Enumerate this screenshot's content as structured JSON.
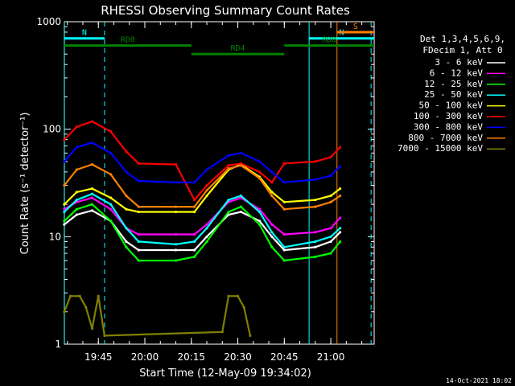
{
  "chart_data": {
    "type": "line",
    "title": "RHESSI Observing Summary Count Rates",
    "xlabel": "Start Time (12-May-09 19:34:02)",
    "ylabel": "Count Rate (s⁻¹ detector⁻¹)",
    "y_scale": "log",
    "ylim": [
      1,
      1000
    ],
    "xlim": [
      "19:34:02",
      "21:14:00"
    ],
    "x_tick_labels": [
      "19:45",
      "20:00",
      "20:15",
      "20:30",
      "20:45",
      "21:00"
    ],
    "y_tick_labels": [
      "1",
      "10",
      "100",
      "1000"
    ],
    "legend_header": [
      "Det 1,3,4,5,6,9,",
      "FDecim 1, Att 0"
    ],
    "legend_position": "right",
    "timestamp": "14-Oct-2021 18:02",
    "series": [
      {
        "name": "3 - 6 keV",
        "color": "#ffffff",
        "points": [
          [
            "19:34",
            13
          ],
          [
            "19:38",
            16
          ],
          [
            "19:43",
            17.5
          ],
          [
            "19:49",
            14
          ],
          [
            "19:54",
            9
          ],
          [
            "19:58",
            7.5
          ],
          [
            "20:10",
            7.5
          ],
          [
            "20:16",
            7.5
          ],
          [
            "20:20",
            10
          ],
          [
            "20:27",
            16
          ],
          [
            "20:31",
            17
          ],
          [
            "20:37",
            14
          ],
          [
            "20:41",
            10
          ],
          [
            "20:45",
            7.5
          ],
          [
            "20:55",
            8
          ],
          [
            "21:00",
            9
          ],
          [
            "21:03",
            11
          ]
        ]
      },
      {
        "name": "6 - 12 keV",
        "color": "#ff00ff",
        "points": [
          [
            "19:34",
            18
          ],
          [
            "19:38",
            21
          ],
          [
            "19:43",
            23
          ],
          [
            "19:49",
            18
          ],
          [
            "19:54",
            12
          ],
          [
            "19:58",
            10.5
          ],
          [
            "20:10",
            10.5
          ],
          [
            "20:16",
            10.5
          ],
          [
            "20:20",
            13
          ],
          [
            "20:27",
            21
          ],
          [
            "20:31",
            23
          ],
          [
            "20:37",
            18
          ],
          [
            "20:41",
            13
          ],
          [
            "20:45",
            10.5
          ],
          [
            "20:55",
            11
          ],
          [
            "21:00",
            12
          ],
          [
            "21:03",
            15
          ]
        ]
      },
      {
        "name": "12 - 25 keV",
        "color": "#00ff00",
        "points": [
          [
            "19:34",
            14
          ],
          [
            "19:38",
            18
          ],
          [
            "19:43",
            20
          ],
          [
            "19:49",
            14
          ],
          [
            "19:54",
            8
          ],
          [
            "19:58",
            6
          ],
          [
            "20:10",
            6
          ],
          [
            "20:16",
            6.5
          ],
          [
            "20:20",
            9
          ],
          [
            "20:27",
            17
          ],
          [
            "20:31",
            19
          ],
          [
            "20:37",
            13
          ],
          [
            "20:41",
            8
          ],
          [
            "20:45",
            6
          ],
          [
            "20:55",
            6.5
          ],
          [
            "21:00",
            7
          ],
          [
            "21:03",
            9
          ]
        ]
      },
      {
        "name": "25 - 50 keV",
        "color": "#00ffff",
        "points": [
          [
            "19:34",
            17
          ],
          [
            "19:38",
            22
          ],
          [
            "19:43",
            25
          ],
          [
            "19:49",
            20
          ],
          [
            "19:54",
            12
          ],
          [
            "19:58",
            9
          ],
          [
            "20:10",
            8.5
          ],
          [
            "20:16",
            9
          ],
          [
            "20:20",
            12
          ],
          [
            "20:27",
            22
          ],
          [
            "20:31",
            24
          ],
          [
            "20:37",
            17
          ],
          [
            "20:41",
            11
          ],
          [
            "20:45",
            8
          ],
          [
            "20:55",
            9
          ],
          [
            "21:00",
            10
          ],
          [
            "21:03",
            12
          ]
        ]
      },
      {
        "name": "50 - 100 keV",
        "color": "#ffff00",
        "points": [
          [
            "19:34",
            20
          ],
          [
            "19:38",
            26
          ],
          [
            "19:43",
            28
          ],
          [
            "19:49",
            23
          ],
          [
            "19:54",
            18
          ],
          [
            "19:58",
            17
          ],
          [
            "20:10",
            17
          ],
          [
            "20:16",
            17
          ],
          [
            "20:20",
            24
          ],
          [
            "20:27",
            42
          ],
          [
            "20:31",
            47
          ],
          [
            "20:37",
            36
          ],
          [
            "20:41",
            26
          ],
          [
            "20:45",
            21
          ],
          [
            "20:55",
            22
          ],
          [
            "21:00",
            24
          ],
          [
            "21:03",
            28
          ]
        ]
      },
      {
        "name": "100 - 300 keV",
        "color": "#ff0000",
        "points": [
          [
            "19:34",
            80
          ],
          [
            "19:38",
            105
          ],
          [
            "19:43",
            118
          ],
          [
            "19:49",
            95
          ],
          [
            "19:54",
            62
          ],
          [
            "19:58",
            48
          ],
          [
            "20:10",
            47
          ],
          [
            "20:16",
            22
          ],
          [
            "20:20",
            30
          ],
          [
            "20:27",
            46
          ],
          [
            "20:31",
            48
          ],
          [
            "20:37",
            40
          ],
          [
            "20:41",
            32
          ],
          [
            "20:45",
            48
          ],
          [
            "20:55",
            50
          ],
          [
            "21:00",
            55
          ],
          [
            "21:03",
            68
          ]
        ]
      },
      {
        "name": "300 - 800 keV",
        "color": "#0000ff",
        "points": [
          [
            "19:34",
            50
          ],
          [
            "19:38",
            68
          ],
          [
            "19:43",
            75
          ],
          [
            "19:49",
            60
          ],
          [
            "19:54",
            40
          ],
          [
            "19:58",
            33
          ],
          [
            "20:10",
            32
          ],
          [
            "20:16",
            32
          ],
          [
            "20:20",
            42
          ],
          [
            "20:27",
            57
          ],
          [
            "20:31",
            60
          ],
          [
            "20:37",
            50
          ],
          [
            "20:41",
            40
          ],
          [
            "20:45",
            32
          ],
          [
            "20:55",
            34
          ],
          [
            "21:00",
            37
          ],
          [
            "21:03",
            45
          ]
        ]
      },
      {
        "name": "800 - 7000 keV",
        "color": "#ff8000",
        "points": [
          [
            "19:34",
            30
          ],
          [
            "19:38",
            42
          ],
          [
            "19:43",
            47
          ],
          [
            "19:49",
            38
          ],
          [
            "19:54",
            24
          ],
          [
            "19:58",
            19
          ],
          [
            "20:10",
            19
          ],
          [
            "20:16",
            19
          ],
          [
            "20:20",
            27
          ],
          [
            "20:27",
            43
          ],
          [
            "20:31",
            46
          ],
          [
            "20:37",
            35
          ],
          [
            "20:41",
            24
          ],
          [
            "20:45",
            18
          ],
          [
            "20:55",
            19
          ],
          [
            "21:00",
            21
          ],
          [
            "21:03",
            24
          ]
        ]
      },
      {
        "name": "7000 - 15000 keV",
        "color": "#808000",
        "points": [
          [
            "19:34",
            2
          ],
          [
            "19:36",
            2.8
          ],
          [
            "19:39",
            2.8
          ],
          [
            "19:41",
            2.2
          ],
          [
            "19:43",
            1.4
          ],
          [
            "19:45",
            2.8
          ],
          [
            "19:47",
            1.2
          ],
          [
            "20:25",
            1.3
          ],
          [
            "20:27",
            2.8
          ],
          [
            "20:30",
            2.8
          ],
          [
            "20:32",
            2.2
          ],
          [
            "20:34",
            1.2
          ]
        ]
      }
    ],
    "annotations": [
      {
        "label": "N",
        "color": "#00ffff",
        "y": 700,
        "start": "19:34",
        "end": "19:47"
      },
      {
        "label": "N",
        "color": "#00ffff",
        "y": 700,
        "start": "20:53",
        "end": "21:14"
      },
      {
        "label": "RD0",
        "color": "#008000",
        "y": 600,
        "start": "19:34",
        "end": "20:15"
      },
      {
        "label": "RD4",
        "color": "#008000",
        "y": 500,
        "start": "20:15",
        "end": "20:45"
      },
      {
        "label": "RD0",
        "color": "#008000",
        "y": 600,
        "start": "20:45",
        "end": "21:14"
      },
      {
        "label": "S",
        "color": "#ff8000",
        "y": 800,
        "start": "21:02",
        "end": "21:14"
      }
    ],
    "vlines": [
      {
        "time": "19:34",
        "color": "#00ffff",
        "style": "solid"
      },
      {
        "time": "19:47",
        "color": "#00ffff",
        "style": "dashed"
      },
      {
        "time": "20:53",
        "color": "#00ffff",
        "style": "solid"
      },
      {
        "time": "21:02",
        "color": "#ff8000",
        "style": "solid"
      },
      {
        "time": "21:13",
        "color": "#00ffff",
        "style": "dashed"
      }
    ]
  }
}
